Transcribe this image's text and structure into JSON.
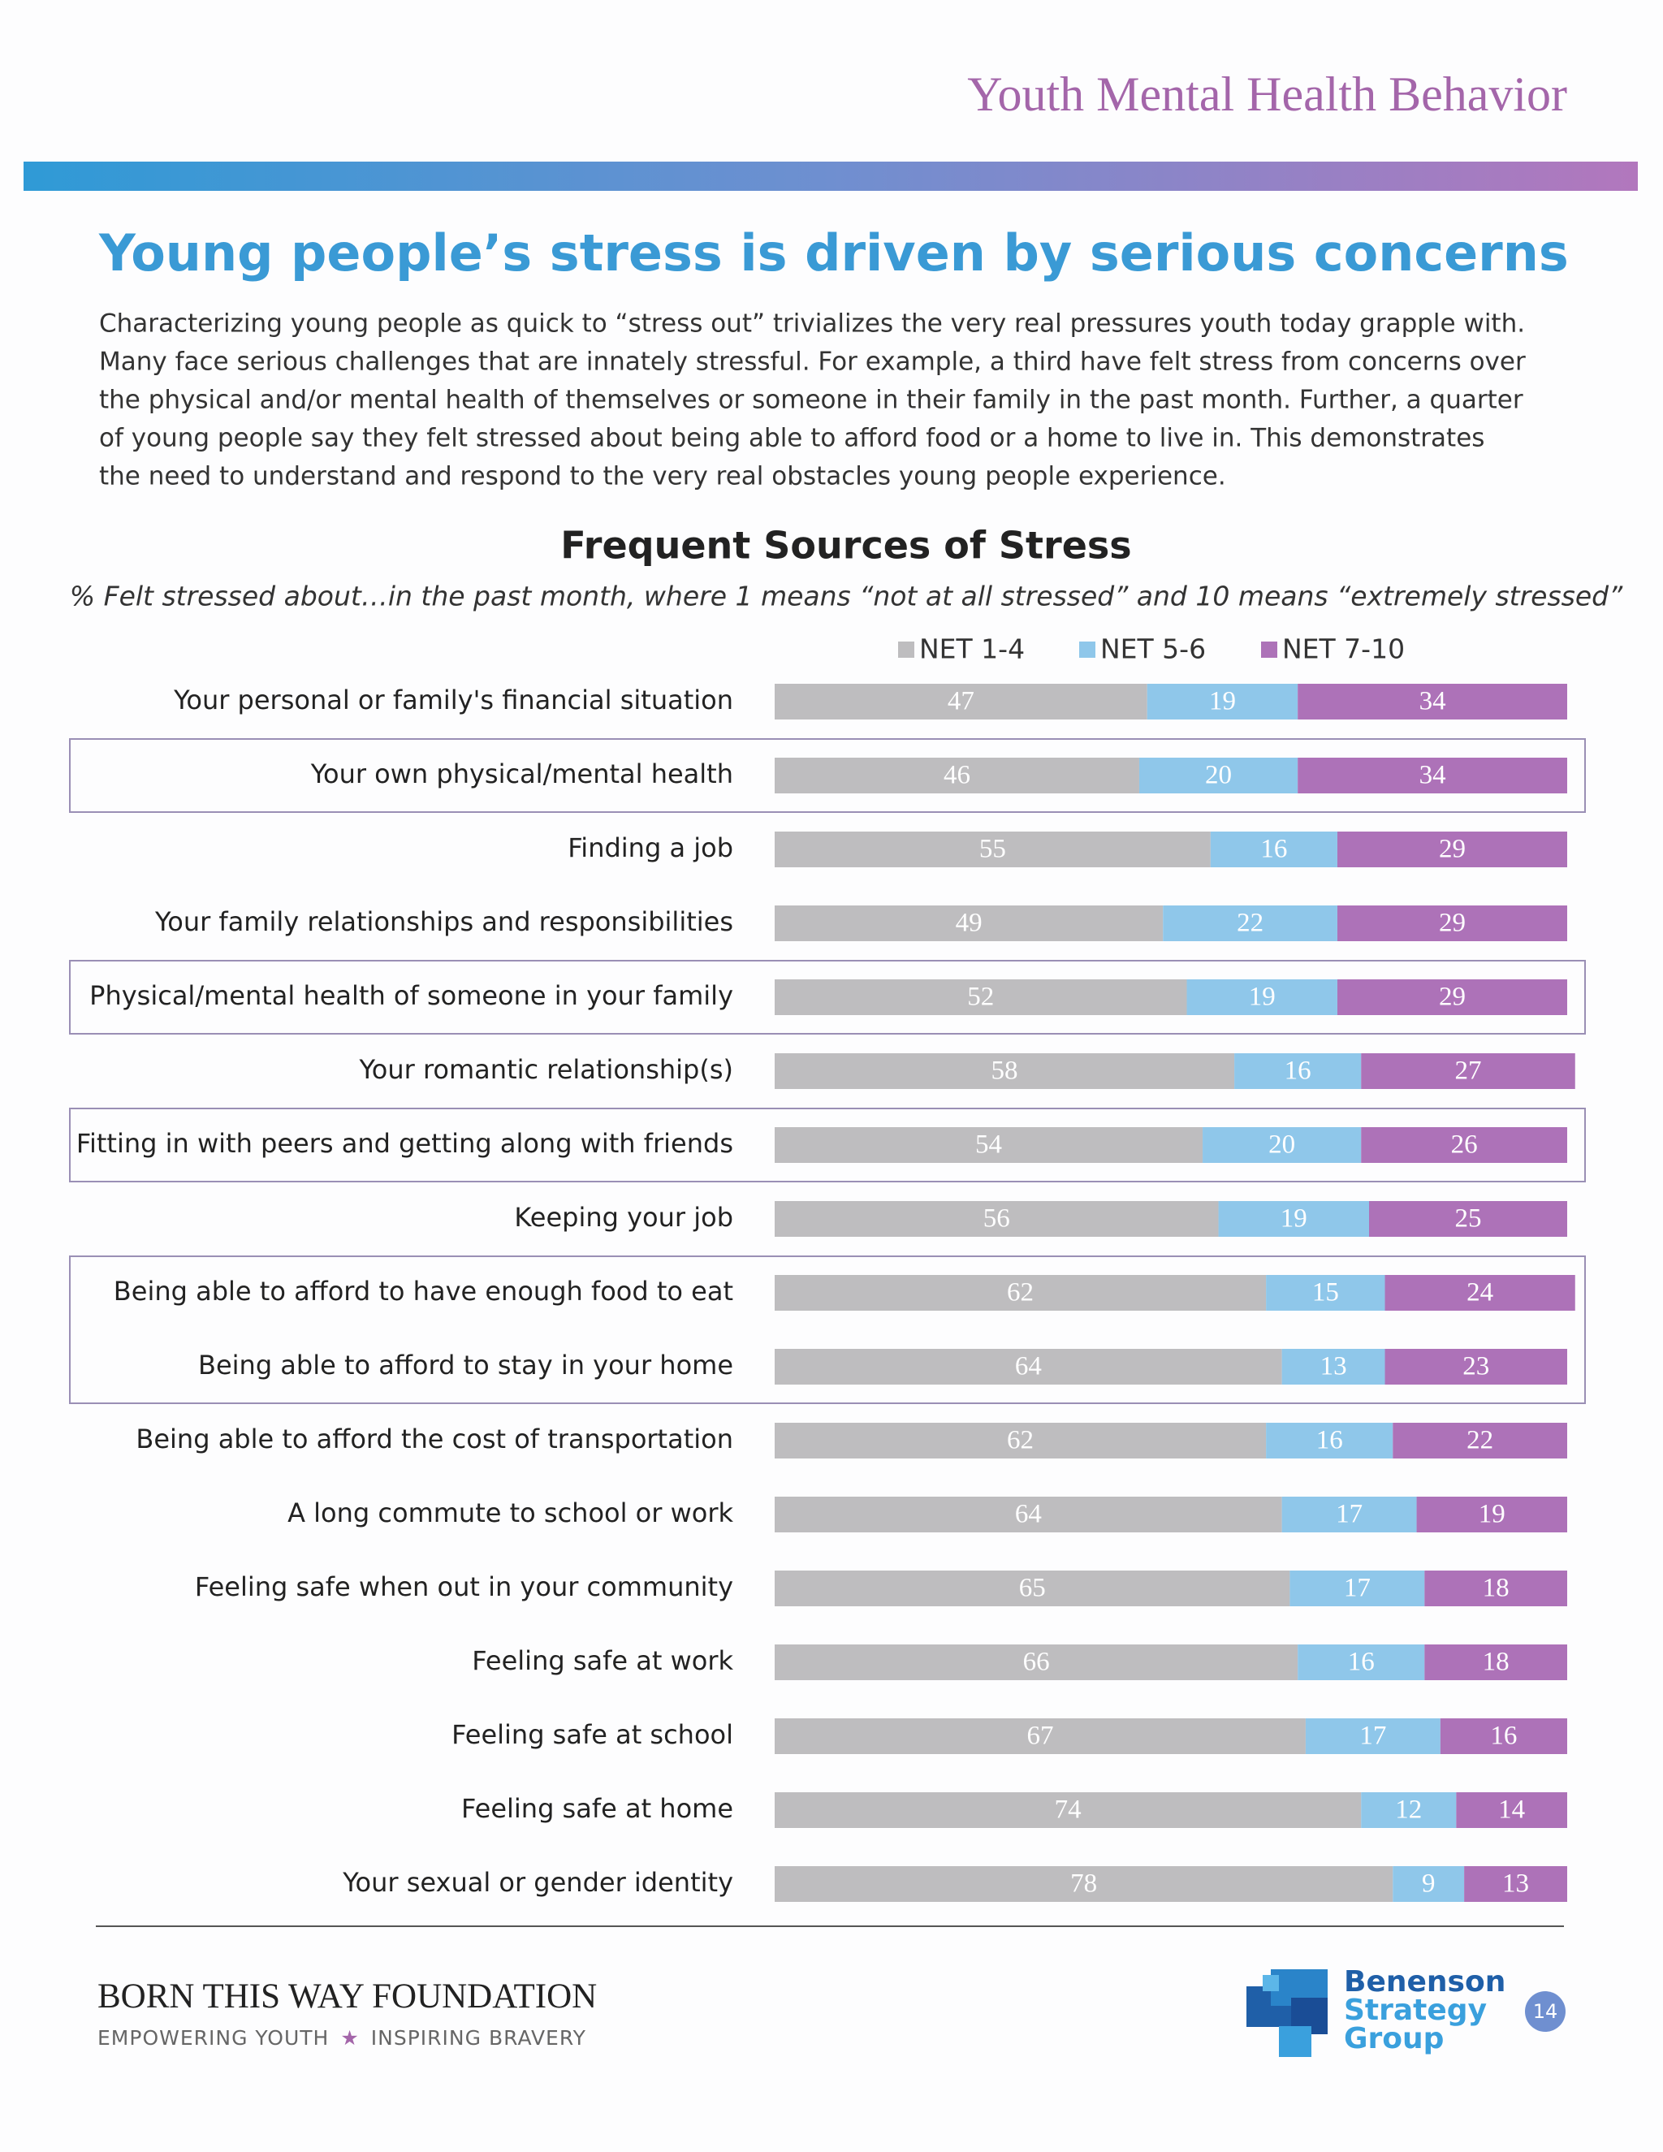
{
  "header": {
    "section": "Youth Mental Health Behavior",
    "title": "Young people’s stress is driven by serious concerns",
    "paragraph": [
      "Characterizing young people as quick to “stress out” trivializes the very real pressures youth today grapple with.",
      "Many face serious challenges that are innately stressful. For example, a third have felt stress from concerns over",
      "the physical and/or mental health of themselves or someone in their family in the past month. Further, a quarter",
      "of young people say they felt stressed about being able to afford food or a home to live in. This demonstrates",
      "the need to understand and respond to the very real obstacles young people experience."
    ]
  },
  "chart_data": {
    "type": "stacked_bar",
    "orientation": "horizontal",
    "title": "Frequent Sources of Stress",
    "subtitle": "% Felt stressed about…in the past month, where 1 means “not at all stressed” and 10 means “extremely stressed”",
    "categories": [
      "Your personal or family's financial situation",
      "Your own physical/mental health",
      "Finding a job",
      "Your family relationships and responsibilities",
      "Physical/mental health of someone in your family",
      "Your romantic relationship(s)",
      "Fitting in with peers and getting along with friends",
      "Keeping your job",
      "Being able to afford to have enough food to eat",
      "Being able to afford to stay in your home",
      "Being able to afford the cost of transportation",
      "A long commute to school or work",
      "Feeling safe when out in your community",
      "Feeling safe at work",
      "Feeling safe at school",
      "Feeling safe at home",
      "Your sexual or gender identity"
    ],
    "series": [
      {
        "name": "NET 1-4",
        "color": "#bebdbf",
        "values": [
          47,
          46,
          55,
          49,
          52,
          58,
          54,
          56,
          62,
          64,
          62,
          64,
          65,
          66,
          67,
          74,
          78
        ]
      },
      {
        "name": "NET 5-6",
        "color": "#8fc7ea",
        "values": [
          19,
          20,
          16,
          22,
          19,
          16,
          20,
          19,
          15,
          13,
          16,
          17,
          17,
          16,
          17,
          12,
          9
        ]
      },
      {
        "name": "NET 7-10",
        "color": "#ad72b8",
        "values": [
          34,
          34,
          29,
          29,
          29,
          27,
          26,
          25,
          24,
          23,
          22,
          19,
          18,
          18,
          16,
          14,
          13
        ]
      }
    ],
    "xlim": [
      0,
      100
    ],
    "legend": "top"
  },
  "footer": {
    "org": "BORN THIS WAY FOUNDATION",
    "tagline_left": "EMPOWERING YOUTH",
    "tagline_right": "INSPIRING BRAVERY",
    "logo": [
      "Benenson",
      "Strategy",
      "Group"
    ],
    "page": "14"
  }
}
